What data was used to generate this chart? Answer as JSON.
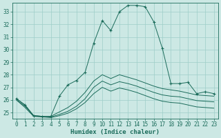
{
  "xlabel": "Humidex (Indice chaleur)",
  "x": [
    0,
    1,
    2,
    3,
    4,
    5,
    6,
    7,
    8,
    9,
    10,
    11,
    12,
    13,
    14,
    15,
    16,
    17,
    18,
    19,
    20,
    21,
    22,
    23
  ],
  "line_main": [
    26.1,
    25.6,
    24.75,
    24.7,
    24.7,
    26.3,
    27.2,
    27.55,
    28.2,
    30.5,
    32.3,
    31.5,
    33.0,
    33.5,
    33.5,
    33.4,
    32.2,
    30.1,
    27.3,
    27.3,
    27.4,
    26.5,
    26.65,
    26.5
  ],
  "line_upper": [
    26.1,
    25.6,
    24.75,
    24.7,
    24.7,
    25.05,
    25.4,
    25.9,
    26.6,
    27.5,
    28.0,
    27.7,
    28.0,
    27.8,
    27.6,
    27.35,
    27.1,
    26.9,
    26.8,
    26.7,
    26.55,
    26.4,
    26.35,
    26.3
  ],
  "line_mid": [
    26.0,
    25.5,
    24.75,
    24.7,
    24.65,
    24.85,
    25.1,
    25.5,
    26.1,
    27.0,
    27.5,
    27.2,
    27.45,
    27.3,
    27.1,
    26.85,
    26.6,
    26.4,
    26.3,
    26.25,
    26.1,
    25.95,
    25.9,
    25.85
  ],
  "line_lower": [
    26.0,
    25.4,
    24.7,
    24.65,
    24.6,
    24.75,
    24.95,
    25.3,
    25.8,
    26.5,
    27.0,
    26.7,
    26.95,
    26.8,
    26.6,
    26.35,
    26.1,
    25.9,
    25.8,
    25.75,
    25.6,
    25.45,
    25.4,
    25.35
  ],
  "bg_color": "#cce8e4",
  "grid_color": "#9ecec8",
  "line_color": "#1a6b5a",
  "ylim": [
    24.5,
    33.7
  ],
  "yticks": [
    25,
    26,
    27,
    28,
    29,
    30,
    31,
    32,
    33
  ],
  "xticks": [
    0,
    1,
    2,
    3,
    4,
    5,
    6,
    7,
    8,
    9,
    10,
    11,
    12,
    13,
    14,
    15,
    16,
    17,
    18,
    19,
    20,
    21,
    22,
    23
  ],
  "tick_fontsize": 5.5,
  "xlabel_fontsize": 6.5
}
